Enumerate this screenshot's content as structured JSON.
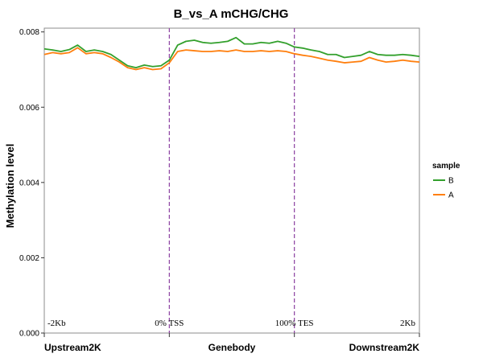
{
  "chart_data": {
    "type": "line",
    "title": "B_vs_A  mCHG/CHG",
    "xlabel": "",
    "ylabel": "Methylation level",
    "ylim": [
      0,
      0.0081
    ],
    "xlim": [
      0,
      180
    ],
    "yticks": [
      0.0,
      0.002,
      0.004,
      0.006,
      0.008
    ],
    "ytick_labels": [
      "0.000",
      "0.002",
      "0.004",
      "0.006",
      "0.008"
    ],
    "regions": [
      "Upstream2K",
      "Genebody",
      "Downstream2K"
    ],
    "region_boundaries": [
      60,
      120
    ],
    "position_labels": [
      "-2Kb",
      "0% TSS",
      "100% TES",
      "2Kb"
    ],
    "position_values": [
      0,
      60,
      120,
      180
    ],
    "grid": false,
    "legend_position": "right",
    "legend_title": "sample",
    "series": [
      {
        "name": "B",
        "color": "#33a02c",
        "x": [
          0,
          4,
          8,
          12,
          16,
          20,
          24,
          28,
          32,
          36,
          40,
          44,
          48,
          52,
          56,
          60,
          64,
          68,
          72,
          76,
          80,
          84,
          88,
          92,
          96,
          100,
          104,
          108,
          112,
          116,
          120,
          124,
          128,
          132,
          136,
          140,
          144,
          148,
          152,
          156,
          160,
          164,
          168,
          172,
          176,
          180
        ],
        "values": [
          0.00755,
          0.00752,
          0.00748,
          0.00753,
          0.00765,
          0.00748,
          0.00752,
          0.00748,
          0.0074,
          0.00725,
          0.0071,
          0.00705,
          0.00712,
          0.00708,
          0.0071,
          0.00725,
          0.00765,
          0.00775,
          0.00778,
          0.00772,
          0.0077,
          0.00772,
          0.00775,
          0.00785,
          0.00768,
          0.00768,
          0.00772,
          0.0077,
          0.00775,
          0.0077,
          0.0076,
          0.00757,
          0.00752,
          0.00748,
          0.0074,
          0.0074,
          0.00732,
          0.00735,
          0.00738,
          0.00748,
          0.0074,
          0.00738,
          0.00738,
          0.0074,
          0.00738,
          0.00735
        ]
      },
      {
        "name": "A",
        "color": "#ff7f0e",
        "x": [
          0,
          4,
          8,
          12,
          16,
          20,
          24,
          28,
          32,
          36,
          40,
          44,
          48,
          52,
          56,
          60,
          64,
          68,
          72,
          76,
          80,
          84,
          88,
          92,
          96,
          100,
          104,
          108,
          112,
          116,
          120,
          124,
          128,
          132,
          136,
          140,
          144,
          148,
          152,
          156,
          160,
          164,
          168,
          172,
          176,
          180
        ],
        "values": [
          0.0074,
          0.00745,
          0.00742,
          0.00745,
          0.00758,
          0.00742,
          0.00745,
          0.00742,
          0.00732,
          0.0072,
          0.00705,
          0.007,
          0.00705,
          0.007,
          0.00702,
          0.00718,
          0.00748,
          0.00752,
          0.0075,
          0.00748,
          0.00748,
          0.0075,
          0.00748,
          0.00752,
          0.00748,
          0.00748,
          0.0075,
          0.00748,
          0.0075,
          0.00748,
          0.00742,
          0.00738,
          0.00735,
          0.0073,
          0.00725,
          0.00722,
          0.00718,
          0.0072,
          0.00722,
          0.00732,
          0.00725,
          0.0072,
          0.00722,
          0.00725,
          0.00722,
          0.0072
        ]
      }
    ]
  }
}
